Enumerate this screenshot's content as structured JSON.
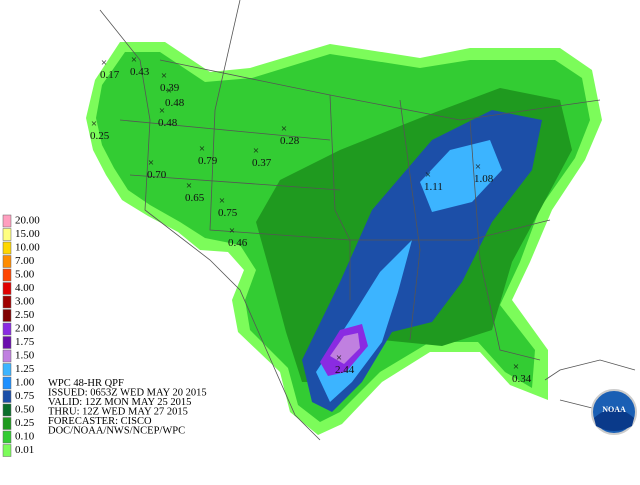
{
  "legend": [
    {
      "label": "20.00",
      "color": "#ff9fbf"
    },
    {
      "label": "15.00",
      "color": "#ffff80"
    },
    {
      "label": "10.00",
      "color": "#ffd700"
    },
    {
      "label": "7.00",
      "color": "#ff8c00"
    },
    {
      "label": "5.00",
      "color": "#ff4500"
    },
    {
      "label": "4.00",
      "color": "#e00000"
    },
    {
      "label": "3.00",
      "color": "#a00000"
    },
    {
      "label": "2.50",
      "color": "#800000"
    },
    {
      "label": "2.00",
      "color": "#8a2be2"
    },
    {
      "label": "1.75",
      "color": "#6a0dad"
    },
    {
      "label": "1.50",
      "color": "#c080e0"
    },
    {
      "label": "1.25",
      "color": "#3cb4ff"
    },
    {
      "label": "1.00",
      "color": "#1e90ff"
    },
    {
      "label": "0.75",
      "color": "#1c4fa8"
    },
    {
      "label": "0.50",
      "color": "#0a6e2a"
    },
    {
      "label": "0.25",
      "color": "#1f9a1f"
    },
    {
      "label": "0.10",
      "color": "#33cc33"
    },
    {
      "label": "0.01",
      "color": "#7cfc5a"
    }
  ],
  "info": [
    "WPC 48-HR QPF",
    "ISSUED: 0653Z WED MAY 20 2015",
    "VALID: 12Z MON MAY 25 2015",
    "THRU: 12Z WED MAY 27 2015",
    "FORECASTER: CISCO",
    "DOC/NOAA/NWS/NCEP/WPC"
  ],
  "points": [
    "0.17",
    "0.43",
    "0.39",
    "0.48",
    "0.48",
    "0.25",
    "0.28",
    "0.79",
    "0.37",
    "0.70",
    "0.65",
    "0.75",
    "0.46",
    "1.11",
    "1.08",
    "2.44",
    "0.34"
  ],
  "logo_text": "NOAA"
}
